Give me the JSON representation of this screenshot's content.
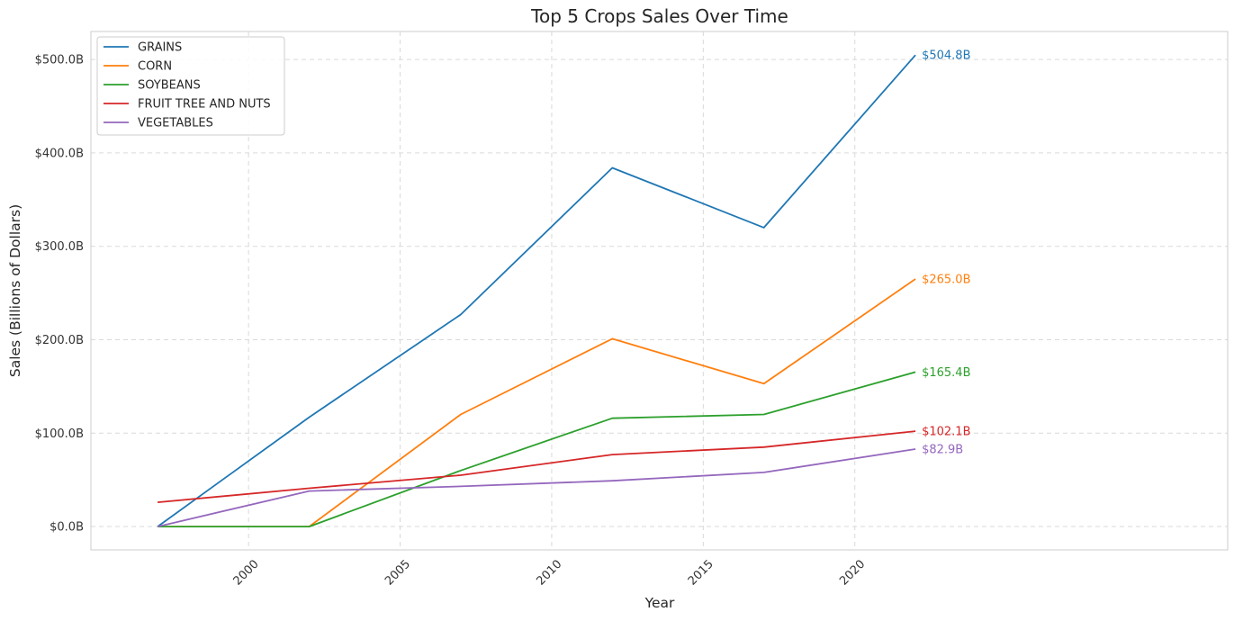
{
  "chart_data": {
    "type": "line",
    "title": "Top 5 Crops Sales Over Time",
    "xlabel": "Year",
    "ylabel": "Sales (Billions of Dollars)",
    "x": [
      1997,
      2002,
      2007,
      2012,
      2017,
      2022
    ],
    "xlim": [
      1994.8,
      2032.3
    ],
    "ylim": [
      -25,
      530
    ],
    "xticks": [
      2000,
      2005,
      2010,
      2015,
      2020
    ],
    "yticks": [
      0,
      100,
      200,
      300,
      400,
      500
    ],
    "ytick_labels": [
      "$0.0B",
      "$100.0B",
      "$200.0B",
      "$300.0B",
      "$400.0B",
      "$500.0B"
    ],
    "grid": true,
    "legend_position": "top-left",
    "series": [
      {
        "name": "GRAINS",
        "color": "#1f77b4",
        "values": [
          0,
          117,
          227,
          384,
          320,
          504.8
        ],
        "end_label": "$504.8B"
      },
      {
        "name": "CORN",
        "color": "#ff7f0e",
        "values": [
          0,
          0,
          120,
          201,
          153,
          265.0
        ],
        "end_label": "$265.0B"
      },
      {
        "name": "SOYBEANS",
        "color": "#2ca02c",
        "values": [
          0,
          0,
          60,
          116,
          120,
          165.4
        ],
        "end_label": "$165.4B"
      },
      {
        "name": "FRUIT TREE AND NUTS",
        "color": "#d62728",
        "values": [
          26,
          41,
          55,
          77,
          85,
          102.1
        ],
        "end_label": "$102.1B"
      },
      {
        "name": "VEGETABLES",
        "color": "#9467bd",
        "values": [
          0,
          38,
          43,
          49,
          58,
          82.9
        ],
        "end_label": "$82.9B"
      }
    ]
  }
}
